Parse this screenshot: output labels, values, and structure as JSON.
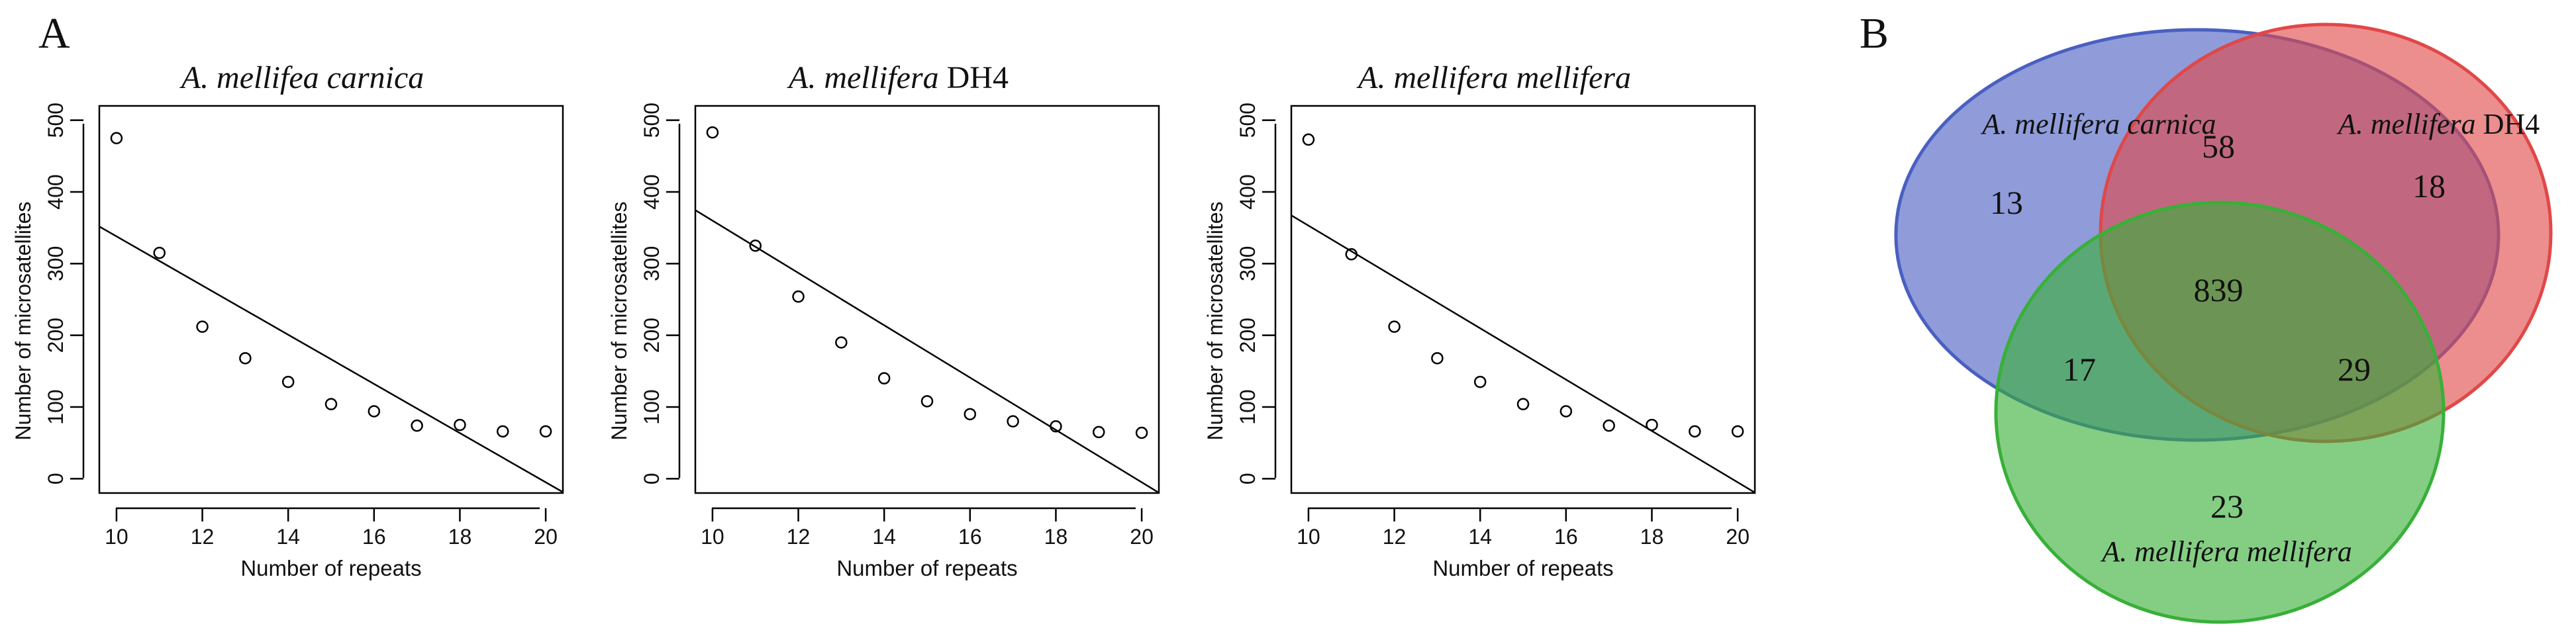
{
  "figure": {
    "panel_labels": [
      "A",
      "B"
    ]
  },
  "chart_data": [
    {
      "type": "scatter",
      "title": "A. mellifea carnica",
      "xlabel": "Number of repeats",
      "ylabel": "Number of microsatellites",
      "xlim": [
        10,
        20
      ],
      "ylim": [
        0,
        500
      ],
      "xticks": [
        10,
        12,
        14,
        16,
        18,
        20
      ],
      "yticks": [
        0,
        100,
        200,
        300,
        400,
        500
      ],
      "x": [
        10,
        11,
        12,
        13,
        14,
        15,
        16,
        17,
        18,
        19,
        20
      ],
      "y": [
        475,
        315,
        212,
        168,
        135,
        104,
        94,
        74,
        75,
        66,
        66
      ],
      "fit_line": {
        "x": [
          10,
          20
        ],
        "y": [
          338,
          -5
        ]
      }
    },
    {
      "type": "scatter",
      "title": "A. mellifera DH4",
      "xlabel": "Number of repeats",
      "ylabel": "Number of microsatellites",
      "xlim": [
        10,
        20
      ],
      "ylim": [
        0,
        500
      ],
      "xticks": [
        10,
        12,
        14,
        16,
        18,
        20
      ],
      "yticks": [
        0,
        100,
        200,
        300,
        400,
        500
      ],
      "x": [
        10,
        11,
        12,
        13,
        14,
        15,
        16,
        17,
        18,
        19,
        20
      ],
      "y": [
        483,
        325,
        254,
        190,
        140,
        108,
        90,
        80,
        73,
        65,
        64
      ],
      "fit_line": {
        "x": [
          10,
          20
        ],
        "y": [
          360,
          -5
        ]
      }
    },
    {
      "type": "scatter",
      "title": "A. mellifera mellifera",
      "xlabel": "Number of repeats",
      "ylabel": "Number of microsatellites",
      "xlim": [
        10,
        20
      ],
      "ylim": [
        0,
        500
      ],
      "xticks": [
        10,
        12,
        14,
        16,
        18,
        20
      ],
      "yticks": [
        0,
        100,
        200,
        300,
        400,
        500
      ],
      "x": [
        10,
        11,
        12,
        13,
        14,
        15,
        16,
        17,
        18,
        19,
        20
      ],
      "y": [
        473,
        313,
        212,
        168,
        135,
        104,
        94,
        74,
        75,
        66,
        66
      ],
      "fit_line": {
        "x": [
          10,
          20
        ],
        "y": [
          353,
          -5
        ]
      }
    },
    {
      "type": "venn",
      "sets": [
        {
          "name": "A. mellifera carnica",
          "color": "#4a5fc1"
        },
        {
          "name": "A. mellifera DH4",
          "color": "#e04848"
        },
        {
          "name": "A. mellifera mellifera",
          "color": "#38b038"
        }
      ],
      "regions": {
        "carnica_only": 13,
        "dh4_only": 18,
        "mellifera_only": 23,
        "carnica_dh4": 58,
        "carnica_mellifera": 17,
        "dh4_mellifera": 29,
        "all_three": 839
      }
    }
  ]
}
